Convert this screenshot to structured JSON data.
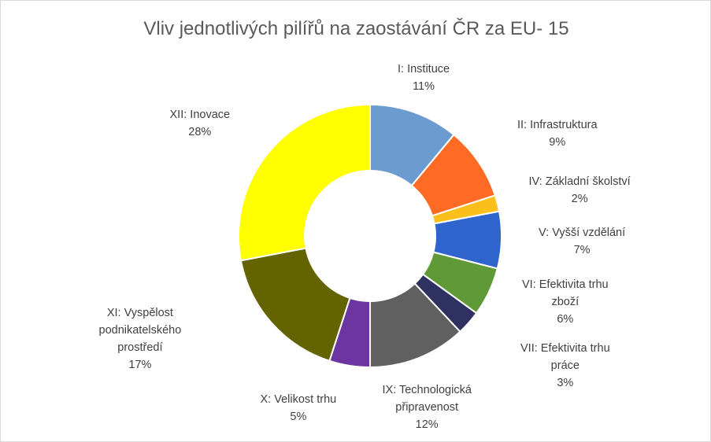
{
  "chart_data": {
    "type": "pie",
    "title": "Vliv jednotlivých pilířů na zaostávání ČR za EU- 15",
    "slices": [
      {
        "label_lines": [
          "I: Instituce"
        ],
        "percent_label": "11%",
        "value": 11,
        "color": "#6c9bd0"
      },
      {
        "label_lines": [
          "II: Infrastruktura"
        ],
        "percent_label": "9%",
        "value": 9,
        "color": "#ff6a24"
      },
      {
        "label_lines": [
          "IV: Základní školství"
        ],
        "percent_label": "2%",
        "value": 2,
        "color": "#fbbf1b"
      },
      {
        "label_lines": [
          "V: Vyšší vzdělání"
        ],
        "percent_label": "7%",
        "value": 7,
        "color": "#2f64cc"
      },
      {
        "label_lines": [
          "VI: Efektivita trhu",
          "zboží"
        ],
        "percent_label": "6%",
        "value": 6,
        "color": "#5f9a37"
      },
      {
        "label_lines": [
          "VII: Efektivita trhu",
          "práce"
        ],
        "percent_label": "3%",
        "value": 3,
        "color": "#2f3261"
      },
      {
        "label_lines": [
          "IX: Technologická",
          "připravenost"
        ],
        "percent_label": "12%",
        "value": 12,
        "color": "#606060"
      },
      {
        "label_lines": [
          "X: Velikost trhu"
        ],
        "percent_label": "5%",
        "value": 5,
        "color": "#6c35a1"
      },
      {
        "label_lines": [
          "XI: Vyspělost",
          "podnikatelského",
          "prostředí"
        ],
        "percent_label": "17%",
        "value": 17,
        "color": "#636300"
      },
      {
        "label_lines": [
          "XII: Inovace"
        ],
        "percent_label": "28%",
        "value": 28,
        "color": "#ffff00"
      }
    ],
    "legend": "none",
    "grid": false
  }
}
